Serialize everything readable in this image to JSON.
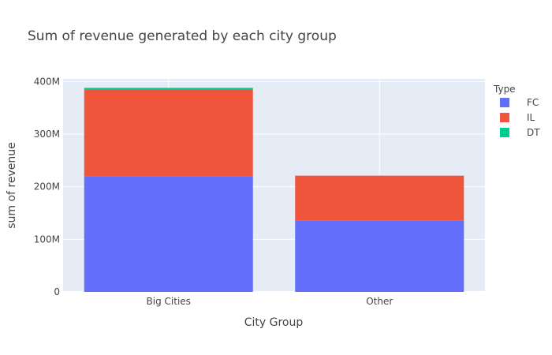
{
  "chart_data": {
    "type": "bar",
    "barmode": "stack",
    "title": "Sum of revenue generated by each city group",
    "xlabel": "City Group",
    "ylabel": "sum of revenue",
    "categories": [
      "Big Cities",
      "Other"
    ],
    "ylim": [
      0,
      405000000
    ],
    "yticks": [
      0,
      100000000,
      200000000,
      300000000,
      400000000
    ],
    "ytick_labels": [
      "0",
      "100M",
      "200M",
      "300M",
      "400M"
    ],
    "grid": true,
    "legend_title": "Type",
    "legend_position": "top-right",
    "series": [
      {
        "name": "FC",
        "color": "#636efa",
        "values": [
          220000000,
          136000000
        ]
      },
      {
        "name": "IL",
        "color": "#ef553b",
        "values": [
          164000000,
          85000000
        ]
      },
      {
        "name": "DT",
        "color": "#00cc96",
        "values": [
          4000000,
          0
        ]
      }
    ],
    "plot_background": "#e5ecf6",
    "gridline_color": "#ffffff"
  }
}
